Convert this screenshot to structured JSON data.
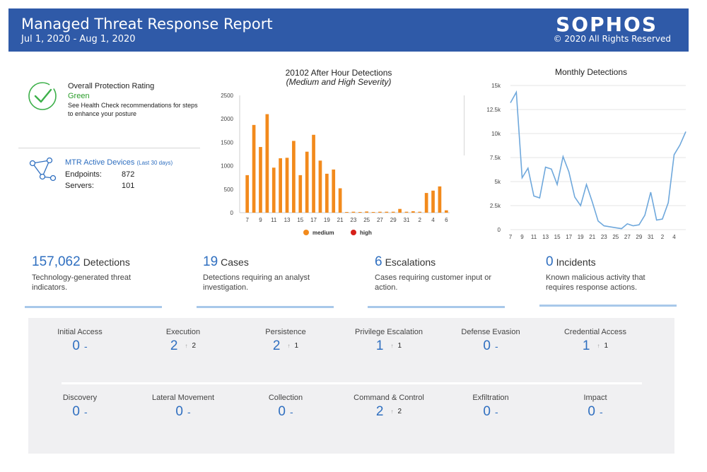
{
  "header": {
    "title": "Managed Threat Response Report",
    "date_range": "Jul 1, 2020 - Aug 1, 2020",
    "logo": "SOPHOS",
    "copyright": "© 2020 All Rights Reserved",
    "background": "#2f5aa8"
  },
  "rating": {
    "title": "Overall Protection Rating",
    "value": "Green",
    "description": "See Health Check recommendations for steps to enhance your posture",
    "icon": "check-circle-icon",
    "color": "#2a9d2a"
  },
  "devices": {
    "title": "MTR Active Devices",
    "subtitle": "(Last 30 days)",
    "icon": "network-icon",
    "endpoints_label": "Endpoints:",
    "endpoints_value": "872",
    "servers_label": "Servers:",
    "servers_value": "101"
  },
  "chart_data": [
    {
      "type": "bar",
      "title": "20102 After Hour Detections",
      "subtitle": "(Medium and High Severity)",
      "ylim": [
        0,
        2500
      ],
      "yticks": [
        "2500",
        "2000",
        "1500",
        "1000",
        "500",
        "0"
      ],
      "xtick_labels": [
        "7",
        "9",
        "11",
        "13",
        "15",
        "17",
        "19",
        "21",
        "23",
        "25",
        "27",
        "29",
        "31",
        "2",
        "4",
        "6"
      ],
      "grid": false,
      "legend_position": "bottom",
      "series": [
        {
          "name": "medium",
          "color": "#f28a1c",
          "values": [
            800,
            1870,
            1400,
            2100,
            960,
            1160,
            1170,
            1530,
            800,
            1300,
            1660,
            1110,
            830,
            920,
            520,
            15,
            20,
            15,
            25,
            15,
            20,
            20,
            20,
            80,
            20,
            30,
            20,
            420,
            470,
            560,
            50
          ]
        },
        {
          "name": "high",
          "color": "#d6201a",
          "values": []
        }
      ]
    },
    {
      "type": "line",
      "title": "Monthly Detections",
      "ylim": [
        0,
        15000
      ],
      "yticks": [
        "15k",
        "12.5k",
        "10k",
        "7.5k",
        "5k",
        "2.5k",
        "0"
      ],
      "xtick_labels": [
        "7",
        "9",
        "11",
        "13",
        "15",
        "17",
        "19",
        "21",
        "23",
        "25",
        "27",
        "29",
        "31",
        "2",
        "4"
      ],
      "grid": true,
      "series": [
        {
          "color": "#6fa8dc",
          "values": [
            13200,
            14300,
            5400,
            6400,
            3500,
            3300,
            6500,
            6300,
            4700,
            7600,
            6000,
            3400,
            2500,
            4700,
            2900,
            900,
            400,
            300,
            200,
            100,
            600,
            400,
            500,
            1500,
            3900,
            1000,
            1100,
            2800,
            7800,
            8800,
            10200
          ]
        }
      ]
    }
  ],
  "stats": [
    {
      "number": "157,062",
      "label": "Detections",
      "description": "Technology-generated threat indicators."
    },
    {
      "number": "19",
      "label": "Cases",
      "description": "Detections requiring an analyst investigation."
    },
    {
      "number": "6",
      "label": "Escalations",
      "description": "Cases requiring customer input or action."
    },
    {
      "number": "0",
      "label": "Incidents",
      "description": "Known malicious activity that requires response actions."
    }
  ],
  "tactics": [
    {
      "name": "Initial Access",
      "value": "0",
      "change": ""
    },
    {
      "name": "Execution",
      "value": "2",
      "change": "2"
    },
    {
      "name": "Persistence",
      "value": "2",
      "change": "1"
    },
    {
      "name": "Privilege Escalation",
      "value": "1",
      "change": "1"
    },
    {
      "name": "Defense Evasion",
      "value": "0",
      "change": ""
    },
    {
      "name": "Credential Access",
      "value": "1",
      "change": "1"
    },
    {
      "name": "Discovery",
      "value": "0",
      "change": ""
    },
    {
      "name": "Lateral Movement",
      "value": "0",
      "change": ""
    },
    {
      "name": "Collection",
      "value": "0",
      "change": ""
    },
    {
      "name": "Command & Control",
      "value": "2",
      "change": "2"
    },
    {
      "name": "Exfiltration",
      "value": "0",
      "change": ""
    },
    {
      "name": "Impact",
      "value": "0",
      "change": ""
    }
  ],
  "colors": {
    "accent": "#2f6fc0",
    "bar_underline": "#a8c8ea",
    "panel": "#f0f0f2"
  }
}
